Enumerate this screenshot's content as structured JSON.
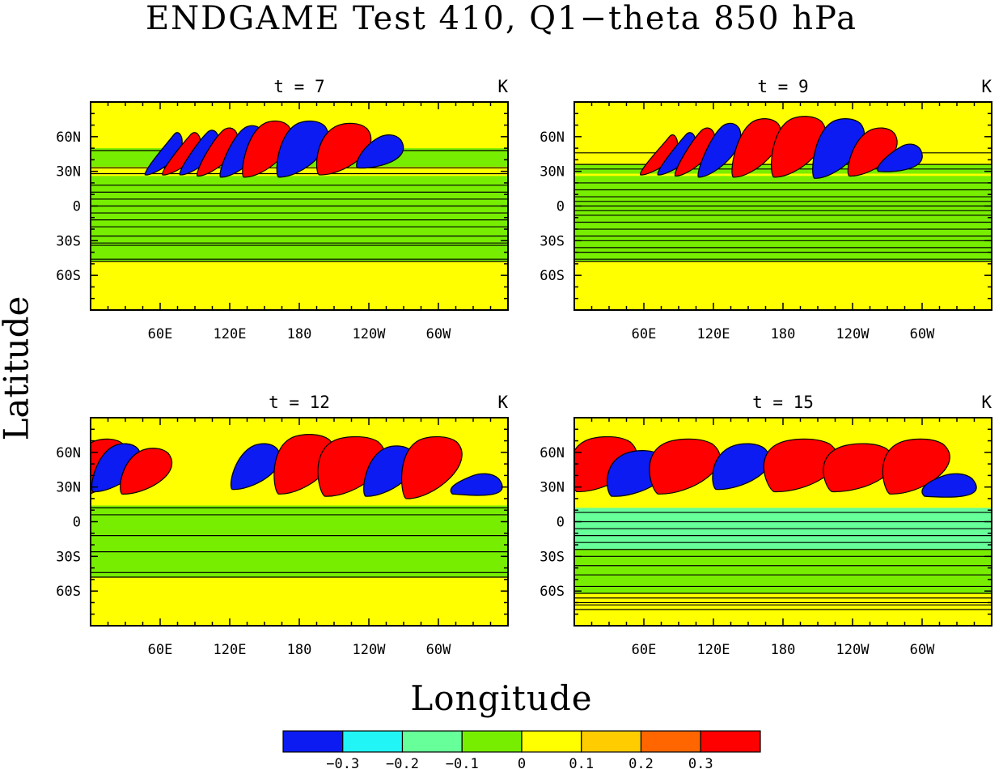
{
  "title": "ENDGAME Test 410, Q1−theta 850 hPa",
  "ylabel": "Latitude",
  "xlabel": "Longitude",
  "colorbar": {
    "colors": [
      "#0b1bf2",
      "#22f5f5",
      "#66ff99",
      "#77ee00",
      "#ffff00",
      "#ffcc00",
      "#ff6600",
      "#ff0000"
    ],
    "tick_labels": [
      "−0.3",
      "−0.2",
      "−0.1",
      "0",
      "0.1",
      "0.2",
      "0.3"
    ]
  },
  "chart_data": [
    {
      "type": "heatmap",
      "time_label": "t = 7",
      "units_label": "K",
      "x_ticks": [
        "60E",
        "120E",
        "180",
        "120W",
        "60W"
      ],
      "y_ticks": [
        "60N",
        "30N",
        "0",
        "30S",
        "60S"
      ],
      "levels": [
        -0.3,
        -0.2,
        -0.1,
        0,
        0.1,
        0.2,
        0.3
      ],
      "background_value": 0.05,
      "xlim_deg": [
        0,
        360
      ],
      "ylim_deg": [
        -90,
        90
      ],
      "bands": [
        [
          50,
          34,
          "#77ee00"
        ],
        [
          26,
          -48,
          "#77ee00"
        ]
      ],
      "lines": [
        48,
        33,
        28,
        18,
        12,
        6,
        0,
        -6,
        -12,
        -18,
        -26,
        -32,
        -34,
        -46,
        -48
      ],
      "waves": [
        [
          75,
          62,
          27,
          6,
          "#0b1bf2"
        ],
        [
          90,
          62,
          27,
          7,
          "#ff0000"
        ],
        [
          105,
          64,
          27,
          8,
          "#0b1bf2"
        ],
        [
          120,
          66,
          26,
          10,
          "#ff0000"
        ],
        [
          140,
          68,
          25,
          13,
          "#0b1bf2"
        ],
        [
          160,
          72,
          25,
          18,
          "#ff0000"
        ],
        [
          190,
          72,
          25,
          20,
          "#0b1bf2"
        ],
        [
          225,
          70,
          27,
          22,
          "#ff0000"
        ],
        [
          258,
          60,
          33,
          16,
          "#0b1bf2"
        ]
      ]
    },
    {
      "type": "heatmap",
      "time_label": "t = 9",
      "units_label": "K",
      "x_ticks": [
        "60E",
        "120E",
        "180",
        "120W",
        "60W"
      ],
      "y_ticks": [
        "60N",
        "30N",
        "0",
        "30S",
        "60S"
      ],
      "levels": [
        -0.3,
        -0.2,
        -0.1,
        0,
        0.1,
        0.2,
        0.3
      ],
      "background_value": 0.05,
      "xlim_deg": [
        0,
        360
      ],
      "ylim_deg": [
        -90,
        90
      ],
      "bands": [
        [
          36,
          28,
          "#77ee00"
        ],
        [
          26,
          -48,
          "#77ee00"
        ]
      ],
      "lines": [
        46,
        36,
        32,
        20,
        14,
        8,
        4,
        0,
        -4,
        -8,
        -14,
        -20,
        -26,
        -30,
        -36,
        -40,
        -46,
        -48
      ],
      "waves": [
        [
          85,
          60,
          27,
          6,
          "#ff0000"
        ],
        [
          100,
          62,
          27,
          7,
          "#0b1bf2"
        ],
        [
          115,
          66,
          26,
          9,
          "#ff0000"
        ],
        [
          135,
          70,
          25,
          12,
          "#0b1bf2"
        ],
        [
          165,
          74,
          25,
          18,
          "#ff0000"
        ],
        [
          200,
          76,
          25,
          22,
          "#ff0000"
        ],
        [
          235,
          74,
          24,
          20,
          "#0b1bf2"
        ],
        [
          265,
          66,
          26,
          18,
          "#ff0000"
        ],
        [
          290,
          52,
          30,
          14,
          "#0b1bf2"
        ]
      ]
    },
    {
      "type": "heatmap",
      "time_label": "t = 12",
      "units_label": "K",
      "x_ticks": [
        "60E",
        "120E",
        "180",
        "120W",
        "60W"
      ],
      "y_ticks": [
        "60N",
        "30N",
        "0",
        "30S",
        "60S"
      ],
      "levels": [
        -0.3,
        -0.2,
        -0.1,
        0,
        0.1,
        0.2,
        0.3
      ],
      "background_value": 0.05,
      "xlim_deg": [
        0,
        360
      ],
      "ylim_deg": [
        -90,
        90
      ],
      "bands": [
        [
          14,
          -48,
          "#77ee00"
        ]
      ],
      "lines": [
        12,
        6,
        -12,
        -26,
        -44,
        -48
      ],
      "waves": [
        [
          15,
          70,
          22,
          22,
          "#ff0000"
        ],
        [
          30,
          66,
          26,
          18,
          "#0b1bf2"
        ],
        [
          55,
          62,
          24,
          20,
          "#ff0000"
        ],
        [
          150,
          66,
          28,
          18,
          "#0b1bf2"
        ],
        [
          190,
          74,
          24,
          26,
          "#ff0000"
        ],
        [
          230,
          72,
          22,
          30,
          "#ff0000"
        ],
        [
          265,
          64,
          22,
          20,
          "#0b1bf2"
        ],
        [
          300,
          72,
          20,
          26,
          "#ff0000"
        ],
        [
          340,
          40,
          24,
          20,
          "#0b1bf2"
        ]
      ]
    },
    {
      "type": "heatmap",
      "time_label": "t = 15",
      "units_label": "K",
      "x_ticks": [
        "60E",
        "120E",
        "180",
        "120W",
        "60W"
      ],
      "y_ticks": [
        "60N",
        "30N",
        "0",
        "30S",
        "60S"
      ],
      "levels": [
        -0.3,
        -0.2,
        -0.1,
        0,
        0.1,
        0.2,
        0.3
      ],
      "background_value": 0.05,
      "xlim_deg": [
        0,
        360
      ],
      "ylim_deg": [
        -90,
        90
      ],
      "bands": [
        [
          12,
          -24,
          "#66ff99"
        ],
        [
          -24,
          -62,
          "#77ee00"
        ]
      ],
      "lines": [
        8,
        0,
        -6,
        -12,
        -18,
        -24,
        -30,
        -38,
        -46,
        -56,
        -62,
        -66,
        -70,
        -72,
        -76
      ],
      "waves": [
        [
          30,
          72,
          26,
          30,
          "#ff0000"
        ],
        [
          60,
          60,
          22,
          26,
          "#0b1bf2"
        ],
        [
          100,
          70,
          24,
          32,
          "#ff0000"
        ],
        [
          150,
          66,
          28,
          24,
          "#0b1bf2"
        ],
        [
          200,
          70,
          26,
          34,
          "#ff0000"
        ],
        [
          250,
          66,
          26,
          32,
          "#ff0000"
        ],
        [
          300,
          70,
          24,
          30,
          "#ff0000"
        ],
        [
          330,
          40,
          22,
          22,
          "#0b1bf2"
        ]
      ]
    }
  ]
}
